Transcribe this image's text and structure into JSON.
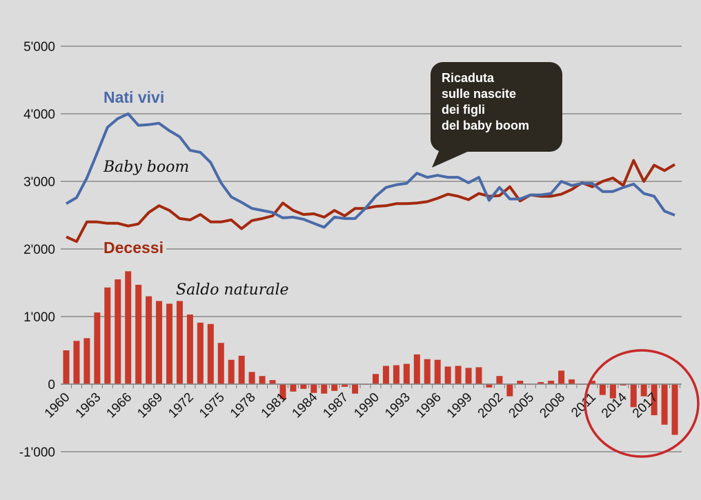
{
  "chart_data": {
    "type": "line+bar",
    "ylim": [
      -1000,
      5000
    ],
    "yticks": [
      5000,
      4000,
      3000,
      2000,
      1000,
      0,
      -1000
    ],
    "ytick_labels": [
      "5'000",
      "4'000",
      "3'000",
      "2'000",
      "1'000",
      "0",
      "-1'000"
    ],
    "xticks": [
      "1960",
      "1963",
      "1966",
      "1969",
      "1972",
      "1975",
      "1978",
      "1981",
      "1984",
      "1987",
      "1990",
      "1993",
      "1996",
      "1999",
      "2002",
      "2005",
      "2008",
      "2011",
      "2014",
      "2017"
    ],
    "grid": true,
    "x": [
      1960,
      1961,
      1962,
      1963,
      1964,
      1965,
      1966,
      1967,
      1968,
      1969,
      1970,
      1971,
      1972,
      1973,
      1974,
      1975,
      1976,
      1977,
      1978,
      1979,
      1980,
      1981,
      1982,
      1983,
      1984,
      1985,
      1986,
      1987,
      1988,
      1989,
      1990,
      1991,
      1992,
      1993,
      1994,
      1995,
      1996,
      1997,
      1998,
      1999,
      2000,
      2001,
      2002,
      2003,
      2004,
      2005,
      2006,
      2007,
      2008,
      2009,
      2010,
      2011,
      2012,
      2013,
      2014,
      2015,
      2016,
      2017,
      2018,
      2019
    ],
    "series": [
      {
        "name": "Nati vivi",
        "type": "line",
        "color": "#4a6aa8",
        "values": [
          2670,
          2760,
          3050,
          3420,
          3800,
          3930,
          4000,
          3830,
          3840,
          3860,
          3750,
          3660,
          3460,
          3430,
          3280,
          2980,
          2770,
          2690,
          2600,
          2570,
          2540,
          2460,
          2470,
          2440,
          2380,
          2320,
          2470,
          2450,
          2450,
          2600,
          2780,
          2910,
          2950,
          2970,
          3120,
          3060,
          3090,
          3060,
          3060,
          2980,
          3060,
          2720,
          2910,
          2740,
          2740,
          2800,
          2800,
          2820,
          3000,
          2940,
          2970,
          2970,
          2850,
          2850,
          2910,
          2960,
          2820,
          2780,
          2560,
          2500
        ]
      },
      {
        "name": "Decessi",
        "type": "line",
        "color": "#a3290f",
        "values": [
          2180,
          2110,
          2400,
          2400,
          2380,
          2380,
          2340,
          2370,
          2540,
          2640,
          2570,
          2450,
          2430,
          2510,
          2400,
          2400,
          2430,
          2300,
          2420,
          2450,
          2490,
          2680,
          2570,
          2510,
          2520,
          2470,
          2570,
          2490,
          2600,
          2600,
          2630,
          2640,
          2670,
          2670,
          2680,
          2700,
          2750,
          2810,
          2780,
          2730,
          2820,
          2780,
          2790,
          2920,
          2710,
          2800,
          2780,
          2780,
          2810,
          2880,
          2980,
          2920,
          3000,
          3050,
          2940,
          3310,
          3000,
          3240,
          3160,
          3250
        ]
      },
      {
        "name": "Saldo naturale",
        "type": "bar",
        "color": "#c8392b",
        "values": [
          500,
          640,
          680,
          1060,
          1430,
          1550,
          1670,
          1470,
          1300,
          1230,
          1190,
          1230,
          1030,
          910,
          890,
          610,
          360,
          420,
          180,
          120,
          60,
          -220,
          -110,
          -70,
          -130,
          -140,
          -100,
          -40,
          -140,
          -10,
          150,
          270,
          280,
          300,
          440,
          370,
          360,
          260,
          270,
          240,
          250,
          -50,
          120,
          -180,
          50,
          0,
          30,
          50,
          200,
          70,
          -10,
          50,
          -160,
          -210,
          -20,
          -340,
          -180,
          -460,
          -600,
          -750
        ]
      }
    ],
    "annotations": {
      "callout": [
        "Ricaduta",
        "sulle nascite",
        "dei figli",
        "del baby boom"
      ],
      "baby_boom": "Baby boom",
      "highlight_circle_color": "#c8282a"
    }
  }
}
